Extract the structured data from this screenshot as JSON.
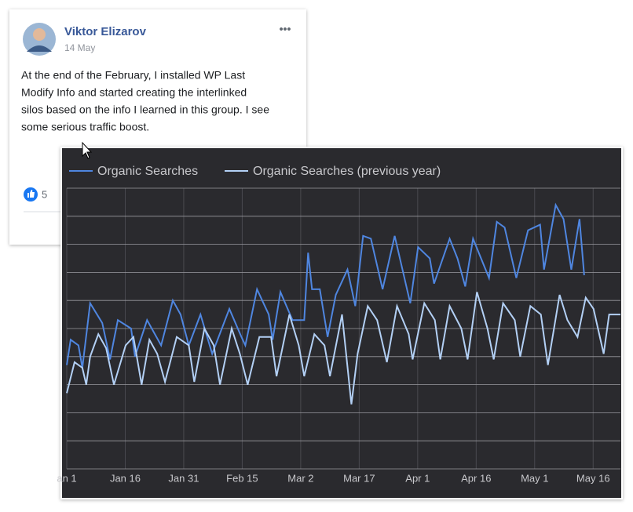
{
  "post": {
    "author": "Viktor Elizarov",
    "date": "14 May",
    "lines": [
      "At the end of the February, I installed WP Last",
      "Modify Info and started creating the interlinked",
      "silos based on the info I learned in this group. I see",
      "some serious traffic boost."
    ],
    "likes": "5"
  },
  "chart_data": {
    "type": "line",
    "xlim": [
      0,
      142
    ],
    "xticks": [
      {
        "value": 0,
        "label": "an 1"
      },
      {
        "value": 15,
        "label": "Jan 16"
      },
      {
        "value": 30,
        "label": "Jan 31"
      },
      {
        "value": 45,
        "label": "Feb 15"
      },
      {
        "value": 60,
        "label": "Mar 2"
      },
      {
        "value": 75,
        "label": "Mar 17"
      },
      {
        "value": 90,
        "label": "Apr 1"
      },
      {
        "value": 105,
        "label": "Apr 16"
      },
      {
        "value": 120,
        "label": "May 1"
      },
      {
        "value": 135,
        "label": "May 16"
      }
    ],
    "ylim": [
      0,
      10
    ],
    "yticks": [
      0,
      1,
      2,
      3,
      4,
      5,
      6,
      7,
      8,
      9,
      10
    ],
    "grid": true,
    "series": [
      {
        "name": "Organic Searches",
        "color": "#4f86e0",
        "x": [
          0,
          1,
          3,
          4,
          6,
          9.1,
          11.1,
          13.1,
          16.5,
          17.5,
          20.6,
          24.2,
          27.2,
          29.2,
          31.3,
          34.3,
          37.3,
          41.7,
          44.8,
          45.8,
          48.8,
          51.8,
          52.8,
          54.8,
          57.9,
          60.9,
          61.9,
          62.9,
          64.9,
          66.9,
          69,
          72,
          74,
          76,
          78,
          81,
          84.1,
          88.1,
          90.1,
          93.1,
          94.2,
          98.2,
          100.2,
          102.2,
          104.2,
          108.3,
          110.3,
          112.3,
          115.3,
          118.3,
          121.4,
          122.4,
          125.4,
          127.4,
          129.4,
          131.5,
          132.7
        ],
        "values": [
          3.7,
          4.6,
          4.4,
          3.6,
          5.9,
          5.2,
          3.9,
          5.3,
          5.0,
          4.0,
          5.3,
          4.4,
          6.0,
          5.5,
          4.4,
          5.5,
          4.1,
          5.7,
          4.7,
          4.4,
          6.4,
          5.5,
          4.6,
          6.3,
          5.3,
          5.3,
          7.7,
          6.4,
          6.4,
          4.7,
          6.2,
          7.1,
          5.8,
          8.3,
          8.2,
          6.4,
          8.3,
          5.9,
          7.9,
          7.5,
          6.6,
          8.2,
          7.5,
          6.5,
          8.2,
          6.8,
          8.8,
          8.6,
          6.8,
          8.5,
          8.7,
          7.1,
          9.4,
          8.9,
          7.1,
          8.9,
          6.9
        ]
      },
      {
        "name": "Organic Searches (previous year)",
        "color": "#b3d0f5",
        "x": [
          0,
          2,
          4,
          5,
          6,
          8.1,
          10.1,
          12.1,
          15.1,
          17.1,
          19.2,
          21.2,
          23.2,
          25.2,
          28.2,
          31.3,
          32.7,
          35.3,
          37.7,
          39.3,
          42.3,
          44.4,
          46.4,
          49.4,
          52.4,
          53.8,
          57.1,
          59.5,
          60.9,
          63.5,
          66.1,
          67.5,
          70.6,
          73,
          74.6,
          77.2,
          79.6,
          82.1,
          84.7,
          87.7,
          88.7,
          91.7,
          94.4,
          95.8,
          98.2,
          101.2,
          102.8,
          105.2,
          107.9,
          109.5,
          111.9,
          114.9,
          116.3,
          118.9,
          121.6,
          123.4,
          126.4,
          128.4,
          131,
          133.1,
          135.1,
          137.7,
          139.1,
          141.1,
          142
        ],
        "values": [
          2.7,
          3.8,
          3.6,
          3.0,
          4.0,
          4.8,
          4.3,
          3.0,
          4.4,
          4.7,
          3.0,
          4.6,
          4.1,
          3.1,
          4.7,
          4.4,
          3.1,
          5.0,
          4.4,
          3.0,
          5.0,
          4.1,
          3.0,
          4.7,
          4.7,
          3.3,
          5.5,
          4.4,
          3.3,
          4.8,
          4.4,
          3.3,
          5.5,
          2.3,
          4.1,
          5.8,
          5.3,
          3.8,
          5.8,
          4.8,
          3.9,
          5.9,
          5.3,
          3.9,
          5.8,
          5.0,
          3.9,
          6.3,
          5.0,
          3.9,
          5.9,
          5.3,
          4.0,
          5.8,
          5.5,
          3.7,
          6.2,
          5.3,
          4.7,
          6.1,
          5.7,
          4.1,
          5.5,
          5.5,
          5.5
        ]
      }
    ]
  }
}
